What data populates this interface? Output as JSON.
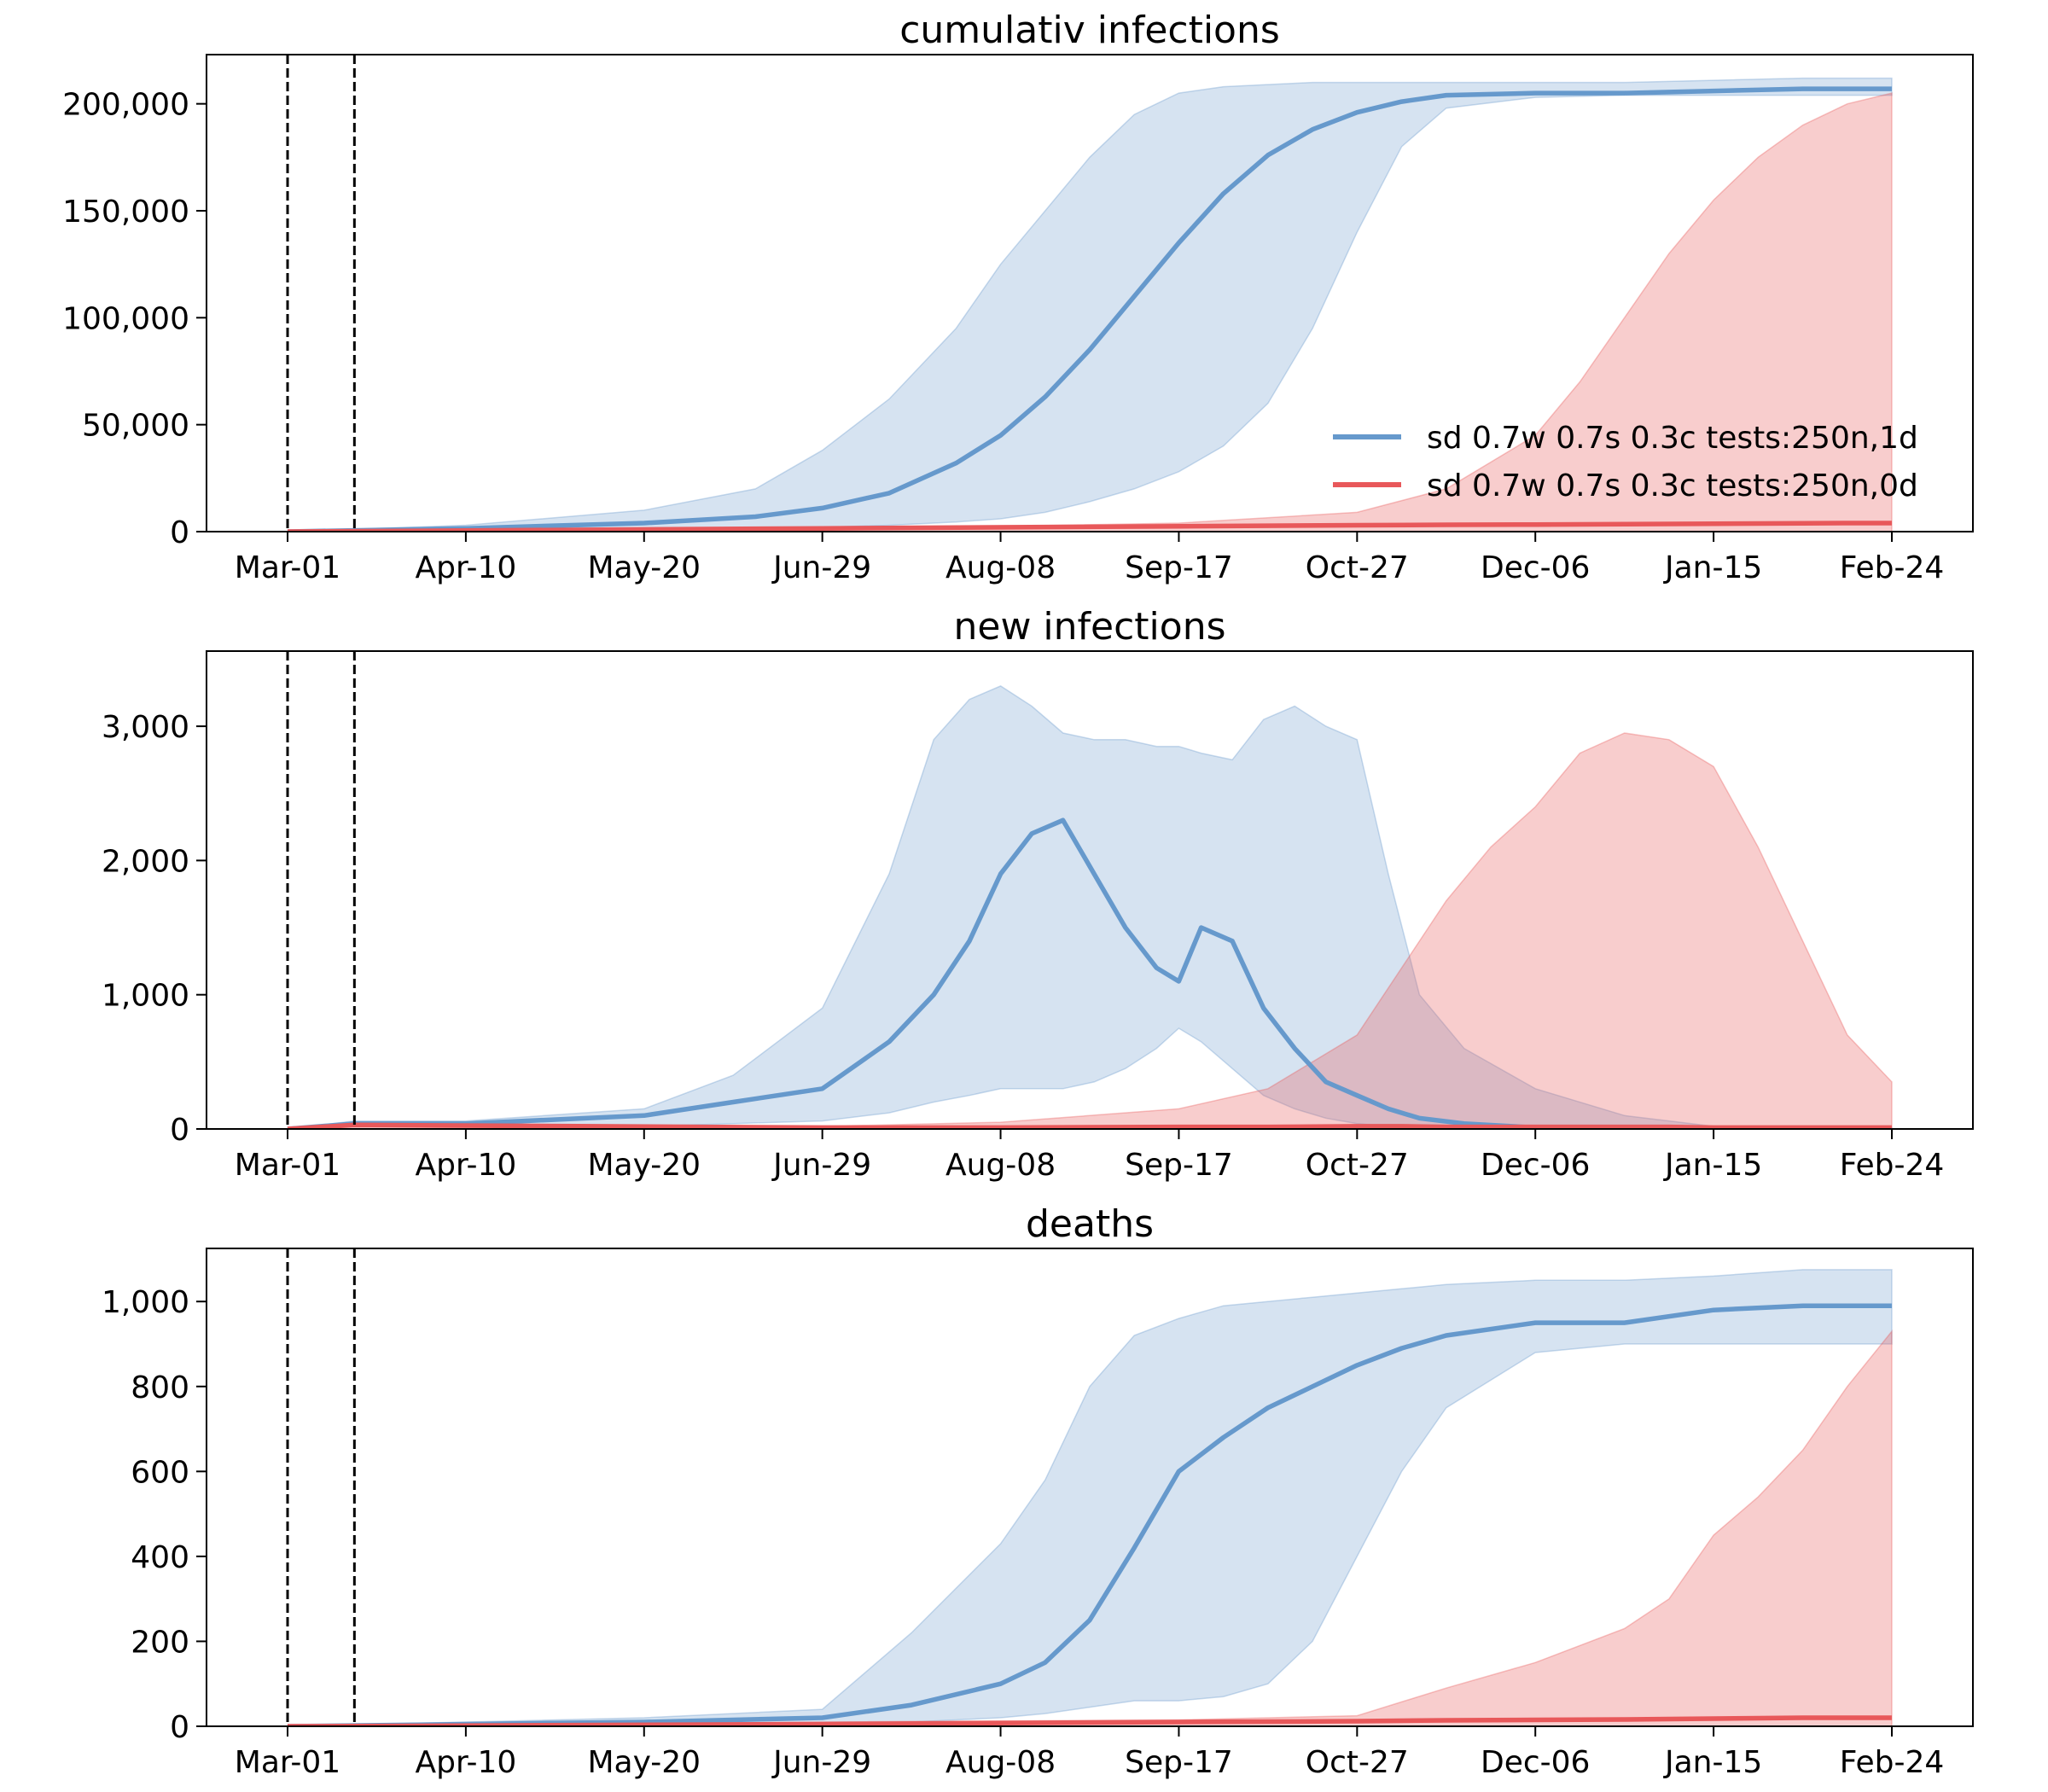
{
  "chart_data": [
    {
      "type": "line",
      "title": "cumulativ infections",
      "x_ticks": [
        "Mar-01",
        "Apr-10",
        "May-20",
        "Jun-29",
        "Aug-08",
        "Sep-17",
        "Oct-27",
        "Dec-06",
        "Jan-15",
        "Feb-24"
      ],
      "x_range": [
        "Feb-12",
        "Feb-28"
      ],
      "ylim": [
        0,
        223000
      ],
      "y_ticks": [
        0,
        50000,
        100000,
        150000,
        200000
      ],
      "y_tick_labels": [
        "0",
        "50,000",
        "100,000",
        "150,000",
        "200,000"
      ],
      "vertical_lines": [
        "Mar-01",
        "Mar-16"
      ],
      "legend": "lower right",
      "series": [
        {
          "name": "sd 0.7w 0.7s 0.3c tests:250n,1d",
          "color": "#6699cc",
          "x": [
            "Mar-01",
            "Apr-10",
            "May-20",
            "Jun-14",
            "Jun-29",
            "Jul-14",
            "Jul-29",
            "Aug-08",
            "Aug-18",
            "Aug-28",
            "Sep-07",
            "Sep-17",
            "Sep-27",
            "Oct-07",
            "Oct-17",
            "Oct-27",
            "Nov-06",
            "Nov-16",
            "Dec-06",
            "Dec-26",
            "Jan-15",
            "Feb-04",
            "Feb-24"
          ],
          "mid": [
            0,
            1500,
            4000,
            7000,
            11000,
            18000,
            32000,
            45000,
            63000,
            85000,
            110000,
            135000,
            158000,
            176000,
            188000,
            196000,
            201000,
            204000,
            205000,
            205000,
            206000,
            207000,
            207000
          ],
          "lo": [
            0,
            200,
            600,
            1200,
            2000,
            3000,
            4500,
            6000,
            9000,
            14000,
            20000,
            28000,
            40000,
            60000,
            95000,
            140000,
            180000,
            198000,
            203000,
            204000,
            204000,
            204000,
            204000
          ],
          "hi": [
            0,
            3000,
            10000,
            20000,
            38000,
            62000,
            95000,
            125000,
            150000,
            175000,
            195000,
            205000,
            208000,
            209000,
            210000,
            210000,
            210000,
            210000,
            210000,
            210000,
            211000,
            212000,
            212000
          ]
        },
        {
          "name": "sd 0.7w 0.7s 0.3c tests:250n,0d",
          "color": "#e8585a",
          "x": [
            "Mar-01",
            "Jun-29",
            "Sep-17",
            "Oct-27",
            "Nov-16",
            "Dec-06",
            "Dec-16",
            "Dec-26",
            "Jan-05",
            "Jan-15",
            "Jan-25",
            "Feb-04",
            "Feb-14",
            "Feb-24"
          ],
          "mid": [
            0,
            1500,
            2500,
            3000,
            3200,
            3300,
            3400,
            3500,
            3600,
            3700,
            3800,
            3900,
            4000,
            4000
          ],
          "lo": [
            0,
            0,
            0,
            0,
            0,
            0,
            0,
            0,
            0,
            0,
            0,
            0,
            0,
            0
          ],
          "hi": [
            0,
            1000,
            4000,
            9000,
            20000,
            45000,
            70000,
            100000,
            130000,
            155000,
            175000,
            190000,
            200000,
            205000
          ]
        }
      ]
    },
    {
      "type": "line",
      "title": "new infections",
      "x_ticks": [
        "Mar-01",
        "Apr-10",
        "May-20",
        "Jun-29",
        "Aug-08",
        "Sep-17",
        "Oct-27",
        "Dec-06",
        "Jan-15",
        "Feb-24"
      ],
      "ylim": [
        0,
        3560
      ],
      "y_ticks": [
        0,
        1000,
        2000,
        3000
      ],
      "y_tick_labels": [
        "0",
        "1,000",
        "2,000",
        "3,000"
      ],
      "vertical_lines": [
        "Mar-01",
        "Mar-16"
      ],
      "series": [
        {
          "name": "sd 0.7w 0.7s 0.3c tests:250n,1d",
          "color": "#6699cc",
          "x": [
            "Mar-01",
            "Mar-16",
            "Apr-10",
            "May-20",
            "Jun-09",
            "Jun-29",
            "Jul-14",
            "Jul-24",
            "Aug-01",
            "Aug-08",
            "Aug-15",
            "Aug-22",
            "Aug-29",
            "Sep-05",
            "Sep-12",
            "Sep-17",
            "Sep-22",
            "Sep-29",
            "Oct-06",
            "Oct-13",
            "Oct-20",
            "Oct-27",
            "Nov-03",
            "Nov-10",
            "Nov-20",
            "Dec-06",
            "Dec-26",
            "Jan-15",
            "Feb-24"
          ],
          "mid": [
            0,
            40,
            40,
            100,
            200,
            300,
            650,
            1000,
            1400,
            1900,
            2200,
            2300,
            1900,
            1500,
            1200,
            1100,
            1500,
            1400,
            900,
            600,
            350,
            250,
            150,
            80,
            40,
            10,
            5,
            5,
            5
          ],
          "lo": [
            0,
            20,
            20,
            20,
            40,
            60,
            120,
            200,
            250,
            300,
            300,
            300,
            350,
            450,
            600,
            750,
            650,
            450,
            250,
            150,
            80,
            40,
            20,
            10,
            5,
            0,
            0,
            0,
            0
          ],
          "hi": [
            0,
            60,
            60,
            150,
            400,
            900,
            1900,
            2900,
            3200,
            3300,
            3150,
            2950,
            2900,
            2900,
            2850,
            2850,
            2800,
            2750,
            3050,
            3150,
            3000,
            2900,
            1900,
            1000,
            600,
            300,
            100,
            20,
            10
          ]
        },
        {
          "name": "sd 0.7w 0.7s 0.3c tests:250n,0d",
          "color": "#e8585a",
          "x": [
            "Mar-01",
            "Mar-16",
            "Jun-29",
            "Aug-08",
            "Sep-17",
            "Oct-07",
            "Oct-27",
            "Nov-06",
            "Nov-16",
            "Nov-26",
            "Dec-06",
            "Dec-16",
            "Dec-26",
            "Jan-05",
            "Jan-15",
            "Jan-25",
            "Feb-04",
            "Feb-14",
            "Feb-24"
          ],
          "mid": [
            0,
            30,
            10,
            10,
            15,
            15,
            20,
            20,
            15,
            15,
            15,
            15,
            15,
            15,
            10,
            10,
            10,
            10,
            10
          ],
          "lo": [
            0,
            0,
            0,
            0,
            0,
            0,
            0,
            0,
            0,
            0,
            0,
            0,
            0,
            0,
            0,
            0,
            0,
            0,
            0
          ],
          "hi": [
            0,
            40,
            20,
            50,
            150,
            300,
            700,
            1200,
            1700,
            2100,
            2400,
            2800,
            2950,
            2900,
            2700,
            2100,
            1400,
            700,
            350
          ]
        }
      ]
    },
    {
      "type": "line",
      "title": "deaths",
      "x_ticks": [
        "Mar-01",
        "Apr-10",
        "May-20",
        "Jun-29",
        "Aug-08",
        "Sep-17",
        "Oct-27",
        "Dec-06",
        "Jan-15",
        "Feb-24"
      ],
      "ylim": [
        0,
        1125
      ],
      "y_ticks": [
        0,
        200,
        400,
        600,
        800,
        1000
      ],
      "y_tick_labels": [
        "0",
        "200",
        "400",
        "600",
        "800",
        "1,000"
      ],
      "vertical_lines": [
        "Mar-01",
        "Mar-16"
      ],
      "series": [
        {
          "name": "sd 0.7w 0.7s 0.3c tests:250n,1d",
          "color": "#6699cc",
          "x": [
            "Mar-01",
            "Apr-10",
            "May-20",
            "Jun-29",
            "Jul-19",
            "Aug-08",
            "Aug-18",
            "Aug-28",
            "Sep-07",
            "Sep-17",
            "Sep-27",
            "Oct-07",
            "Oct-17",
            "Oct-27",
            "Nov-06",
            "Nov-16",
            "Dec-06",
            "Dec-26",
            "Jan-15",
            "Feb-04",
            "Feb-24"
          ],
          "mid": [
            0,
            5,
            10,
            20,
            50,
            100,
            150,
            250,
            420,
            600,
            680,
            750,
            800,
            850,
            890,
            920,
            950,
            950,
            980,
            990,
            990
          ],
          "lo": [
            0,
            0,
            5,
            5,
            10,
            20,
            30,
            45,
            60,
            60,
            70,
            100,
            200,
            400,
            600,
            750,
            880,
            900,
            900,
            900,
            900
          ],
          "hi": [
            0,
            10,
            20,
            40,
            220,
            430,
            580,
            800,
            920,
            960,
            990,
            1000,
            1010,
            1020,
            1030,
            1040,
            1050,
            1050,
            1060,
            1075,
            1075
          ]
        },
        {
          "name": "sd 0.7w 0.7s 0.3c tests:250n,0d",
          "color": "#e8585a",
          "x": [
            "Mar-01",
            "Jun-29",
            "Sep-17",
            "Oct-27",
            "Nov-16",
            "Dec-06",
            "Dec-26",
            "Jan-05",
            "Jan-15",
            "Jan-25",
            "Feb-04",
            "Feb-14",
            "Feb-24"
          ],
          "mid": [
            0,
            5,
            10,
            12,
            14,
            15,
            16,
            17,
            18,
            19,
            20,
            20,
            20
          ],
          "lo": [
            0,
            0,
            0,
            0,
            0,
            0,
            0,
            0,
            0,
            0,
            0,
            0,
            0
          ],
          "hi": [
            0,
            10,
            15,
            25,
            90,
            150,
            230,
            300,
            450,
            540,
            650,
            800,
            930
          ]
        }
      ]
    }
  ]
}
